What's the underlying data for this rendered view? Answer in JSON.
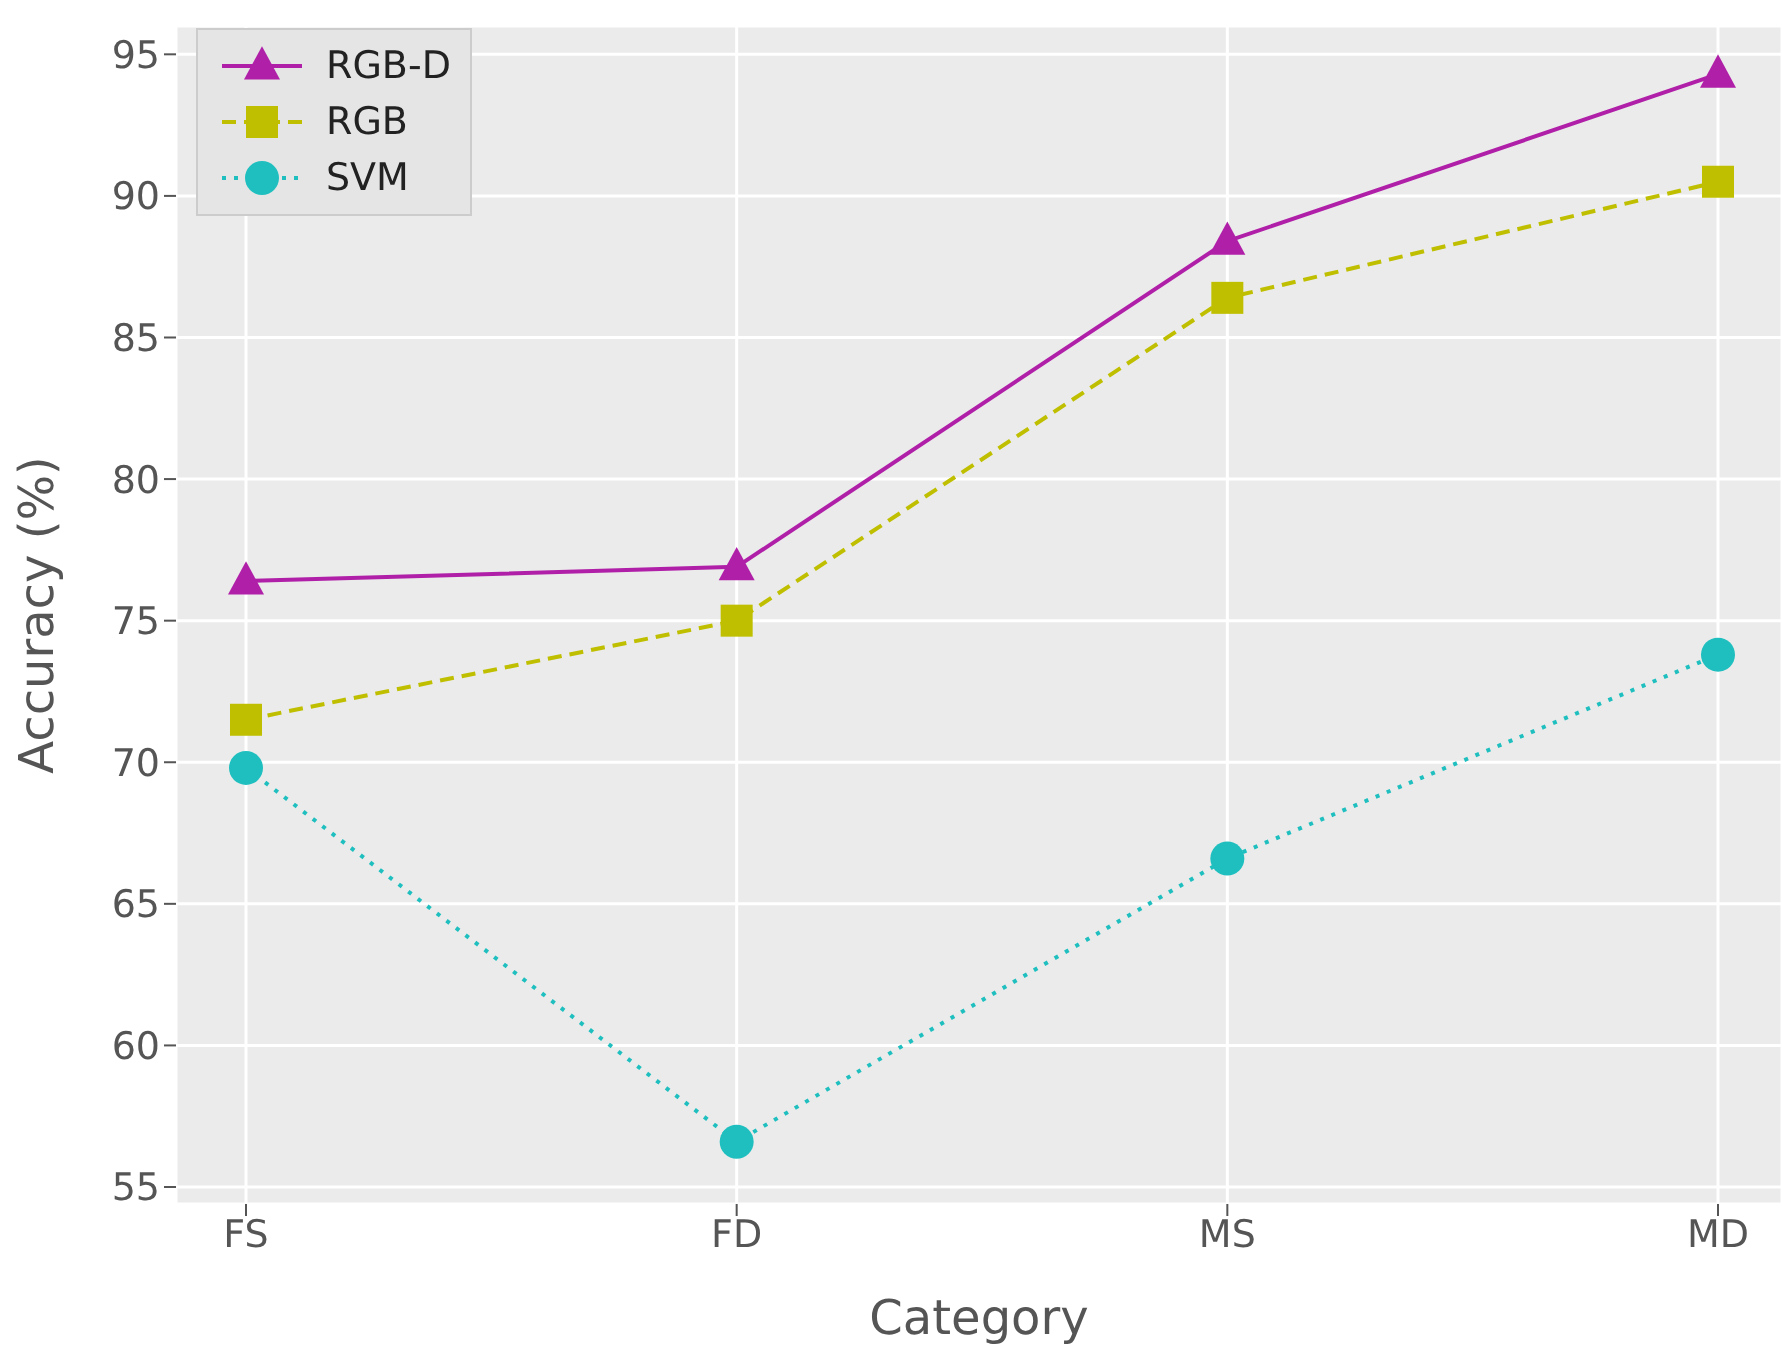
{
  "chart_data": {
    "type": "line",
    "xlabel": "Category",
    "ylabel": "Accuracy (%)",
    "categories": [
      "FS",
      "FD",
      "MS",
      "MD"
    ],
    "series": [
      {
        "name": "RGB-D",
        "color": "#b01fa8",
        "values": [
          76.4,
          76.9,
          88.4,
          94.3
        ],
        "marker": "triangle",
        "line_style": "solid"
      },
      {
        "name": "RGB",
        "color": "#bfbf00",
        "values": [
          71.5,
          75.0,
          86.4,
          90.5
        ],
        "marker": "square",
        "line_style": "dashed"
      },
      {
        "name": "SVM",
        "color": "#1fbfbf",
        "values": [
          69.8,
          56.6,
          66.6,
          73.8
        ],
        "marker": "circle",
        "line_style": "dotted"
      }
    ],
    "ylim": [
      54.4,
      96
    ],
    "yticks": [
      55,
      60,
      65,
      70,
      75,
      80,
      85,
      90,
      95
    ],
    "grid": true,
    "legend": "top left"
  }
}
